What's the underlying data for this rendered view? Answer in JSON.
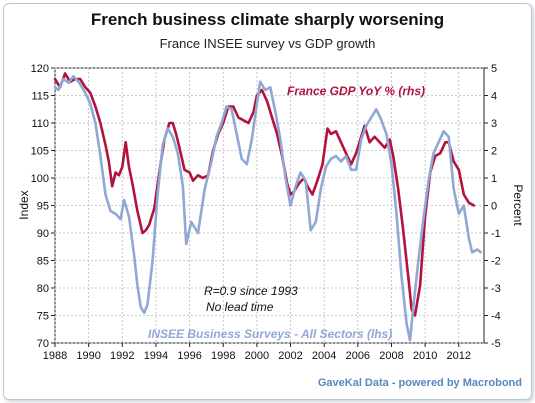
{
  "chart_data": {
    "type": "line",
    "title": "French business climate sharply worsening",
    "subtitle": "France INSEE survey vs GDP growth",
    "ylabel_left": "Index",
    "ylabel_right": "Percent",
    "ylim_left": [
      70,
      120
    ],
    "ylim_right": [
      -5,
      5
    ],
    "xlim": [
      1988,
      2013.5
    ],
    "x_ticks": [
      "1988",
      "1990",
      "1992",
      "1994",
      "1996",
      "1998",
      "2000",
      "2002",
      "2004",
      "2006",
      "2008",
      "2010",
      "2012"
    ],
    "left_ticks": [
      "120",
      "115",
      "110",
      "105",
      "100",
      "95",
      "90",
      "85",
      "80",
      "75",
      "70"
    ],
    "right_ticks": [
      "5",
      "4",
      "3",
      "2",
      "1",
      "0",
      "-1",
      "-2",
      "-3",
      "-4",
      "-5"
    ],
    "grid": true,
    "annotations": [
      "R=0.9 since 1993",
      "No lead time"
    ],
    "footer": "GaveKal Data - powered by Macrobond",
    "series": [
      {
        "name": "France GDP YoY % (rhs)",
        "axis": "right",
        "color": "#b3123e",
        "points": [
          [
            1988.0,
            4.6
          ],
          [
            1988.3,
            4.3
          ],
          [
            1988.6,
            4.8
          ],
          [
            1988.9,
            4.5
          ],
          [
            1989.2,
            4.6
          ],
          [
            1989.5,
            4.6
          ],
          [
            1989.8,
            4.3
          ],
          [
            1990.1,
            4.1
          ],
          [
            1990.4,
            3.6
          ],
          [
            1990.7,
            3.0
          ],
          [
            1991.0,
            2.2
          ],
          [
            1991.2,
            1.6
          ],
          [
            1991.4,
            0.7
          ],
          [
            1991.6,
            1.2
          ],
          [
            1991.8,
            1.1
          ],
          [
            1992.0,
            1.4
          ],
          [
            1992.2,
            2.3
          ],
          [
            1992.4,
            1.4
          ],
          [
            1992.6,
            0.8
          ],
          [
            1992.9,
            -0.2
          ],
          [
            1993.2,
            -1.0
          ],
          [
            1993.4,
            -0.9
          ],
          [
            1993.6,
            -0.7
          ],
          [
            1993.9,
            -0.1
          ],
          [
            1994.2,
            1.2
          ],
          [
            1994.5,
            2.4
          ],
          [
            1994.8,
            3.0
          ],
          [
            1995.0,
            3.0
          ],
          [
            1995.2,
            2.6
          ],
          [
            1995.4,
            2.1
          ],
          [
            1995.7,
            1.3
          ],
          [
            1996.0,
            1.2
          ],
          [
            1996.2,
            0.9
          ],
          [
            1996.5,
            1.1
          ],
          [
            1996.8,
            1.0
          ],
          [
            1997.1,
            1.1
          ],
          [
            1997.4,
            2.0
          ],
          [
            1997.7,
            2.6
          ],
          [
            1998.0,
            3.0
          ],
          [
            1998.3,
            3.6
          ],
          [
            1998.6,
            3.6
          ],
          [
            1998.9,
            3.2
          ],
          [
            1999.2,
            3.1
          ],
          [
            1999.5,
            3.0
          ],
          [
            1999.8,
            3.4
          ],
          [
            2000.0,
            4.0
          ],
          [
            2000.3,
            4.2
          ],
          [
            2000.6,
            3.8
          ],
          [
            2000.9,
            3.2
          ],
          [
            2001.2,
            2.6
          ],
          [
            2001.5,
            1.8
          ],
          [
            2001.8,
            0.8
          ],
          [
            2002.0,
            0.4
          ],
          [
            2002.2,
            0.5
          ],
          [
            2002.5,
            0.8
          ],
          [
            2002.8,
            1.0
          ],
          [
            2003.0,
            0.7
          ],
          [
            2003.3,
            0.4
          ],
          [
            2003.6,
            0.9
          ],
          [
            2003.9,
            1.5
          ],
          [
            2004.2,
            2.8
          ],
          [
            2004.4,
            2.6
          ],
          [
            2004.7,
            2.7
          ],
          [
            2005.0,
            2.3
          ],
          [
            2005.3,
            1.9
          ],
          [
            2005.6,
            1.5
          ],
          [
            2005.9,
            1.9
          ],
          [
            2006.2,
            2.5
          ],
          [
            2006.4,
            2.9
          ],
          [
            2006.7,
            2.3
          ],
          [
            2007.0,
            2.5
          ],
          [
            2007.3,
            2.3
          ],
          [
            2007.6,
            2.1
          ],
          [
            2007.9,
            2.4
          ],
          [
            2008.1,
            1.8
          ],
          [
            2008.4,
            0.6
          ],
          [
            2008.7,
            -0.9
          ],
          [
            2009.0,
            -2.6
          ],
          [
            2009.2,
            -3.8
          ],
          [
            2009.4,
            -4.0
          ],
          [
            2009.7,
            -2.9
          ],
          [
            2010.0,
            -0.4
          ],
          [
            2010.3,
            1.2
          ],
          [
            2010.6,
            1.8
          ],
          [
            2010.9,
            1.9
          ],
          [
            2011.2,
            2.3
          ],
          [
            2011.4,
            2.3
          ],
          [
            2011.7,
            1.6
          ],
          [
            2012.0,
            1.3
          ],
          [
            2012.3,
            0.4
          ],
          [
            2012.6,
            0.1
          ],
          [
            2012.9,
            0.0
          ]
        ]
      },
      {
        "name": "INSEE Business Surveys - All Sectors (lhs)",
        "axis": "left",
        "color": "#8fa8d4",
        "points": [
          [
            1988.0,
            116.5
          ],
          [
            1988.2,
            116.0
          ],
          [
            1988.5,
            118.0
          ],
          [
            1988.8,
            117.3
          ],
          [
            1989.1,
            118.5
          ],
          [
            1989.4,
            117.5
          ],
          [
            1989.8,
            115.5
          ],
          [
            1990.1,
            113.5
          ],
          [
            1990.4,
            110.0
          ],
          [
            1990.7,
            104.0
          ],
          [
            1991.0,
            97.0
          ],
          [
            1991.3,
            94.0
          ],
          [
            1991.6,
            93.5
          ],
          [
            1991.9,
            92.5
          ],
          [
            1992.1,
            96.0
          ],
          [
            1992.4,
            93.0
          ],
          [
            1992.7,
            86.0
          ],
          [
            1992.9,
            80.5
          ],
          [
            1993.1,
            76.5
          ],
          [
            1993.3,
            75.5
          ],
          [
            1993.5,
            77.0
          ],
          [
            1993.8,
            85.0
          ],
          [
            1994.1,
            97.0
          ],
          [
            1994.4,
            106.0
          ],
          [
            1994.7,
            109.0
          ],
          [
            1995.0,
            107.5
          ],
          [
            1995.3,
            104.5
          ],
          [
            1995.6,
            98.5
          ],
          [
            1995.8,
            88.0
          ],
          [
            1996.1,
            92.0
          ],
          [
            1996.5,
            90.0
          ],
          [
            1996.9,
            98.0
          ],
          [
            1997.3,
            103.0
          ],
          [
            1997.6,
            107.5
          ],
          [
            1997.9,
            110.0
          ],
          [
            1998.2,
            113.0
          ],
          [
            1998.5,
            112.5
          ],
          [
            1998.8,
            108.0
          ],
          [
            1999.1,
            103.5
          ],
          [
            1999.4,
            102.5
          ],
          [
            1999.7,
            107.0
          ],
          [
            2000.0,
            113.5
          ],
          [
            2000.2,
            117.5
          ],
          [
            2000.5,
            116.0
          ],
          [
            2000.8,
            116.5
          ],
          [
            2001.1,
            112.0
          ],
          [
            2001.4,
            107.0
          ],
          [
            2001.7,
            100.0
          ],
          [
            2002.0,
            95.0
          ],
          [
            2002.3,
            98.5
          ],
          [
            2002.6,
            101.0
          ],
          [
            2002.9,
            99.5
          ],
          [
            2003.2,
            90.5
          ],
          [
            2003.5,
            92.0
          ],
          [
            2003.8,
            98.0
          ],
          [
            2004.1,
            102.0
          ],
          [
            2004.4,
            103.5
          ],
          [
            2004.7,
            104.0
          ],
          [
            2005.0,
            103.0
          ],
          [
            2005.3,
            104.0
          ],
          [
            2005.6,
            101.5
          ],
          [
            2005.9,
            101.5
          ],
          [
            2006.2,
            107.0
          ],
          [
            2006.5,
            109.5
          ],
          [
            2006.8,
            111.0
          ],
          [
            2007.1,
            112.5
          ],
          [
            2007.4,
            110.5
          ],
          [
            2007.7,
            108.0
          ],
          [
            2008.0,
            102.5
          ],
          [
            2008.3,
            93.5
          ],
          [
            2008.6,
            82.0
          ],
          [
            2008.9,
            73.5
          ],
          [
            2009.1,
            70.5
          ],
          [
            2009.3,
            76.5
          ],
          [
            2009.6,
            85.0
          ],
          [
            2009.9,
            92.5
          ],
          [
            2010.2,
            99.5
          ],
          [
            2010.5,
            104.5
          ],
          [
            2010.8,
            106.5
          ],
          [
            2011.1,
            108.5
          ],
          [
            2011.4,
            107.5
          ],
          [
            2011.7,
            98.0
          ],
          [
            2012.0,
            93.5
          ],
          [
            2012.3,
            95.0
          ],
          [
            2012.6,
            89.0
          ],
          [
            2012.8,
            86.5
          ],
          [
            2013.1,
            87.0
          ],
          [
            2013.3,
            86.5
          ]
        ]
      }
    ]
  }
}
